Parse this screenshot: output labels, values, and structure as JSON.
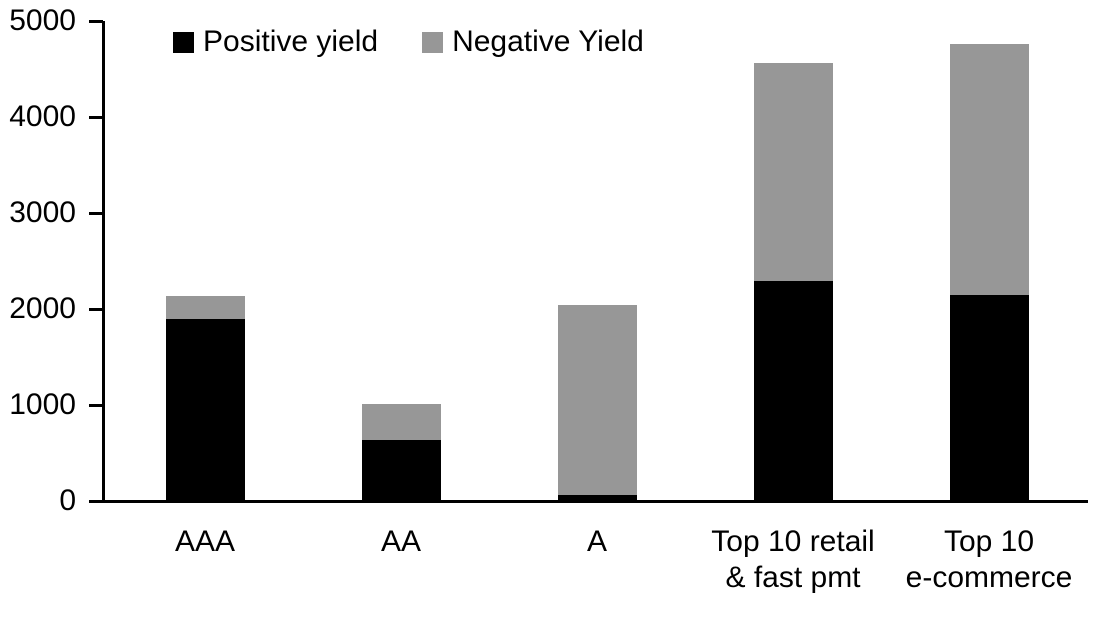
{
  "chart_data": {
    "type": "bar",
    "stacked": true,
    "title": "",
    "xlabel": "",
    "ylabel": "",
    "ylim": [
      0,
      5000
    ],
    "ytick_step": 1000,
    "ytick_labels": [
      "0",
      "1000",
      "2000",
      "3000",
      "4000",
      "5000"
    ],
    "grid": false,
    "legend_position": "top-inside",
    "categories": [
      "AAA",
      "AA",
      "A",
      "Top 10 retail & fast pmt",
      "Top 10 e-commerce"
    ],
    "category_label_lines": [
      [
        "AAA"
      ],
      [
        "AA"
      ],
      [
        "A"
      ],
      [
        "Top 10 retail",
        "& fast pmt"
      ],
      [
        "Top 10",
        "e-commerce"
      ]
    ],
    "series": [
      {
        "name": "Positive yield",
        "color": "#000000",
        "values": [
          1890,
          620,
          50,
          2280,
          2140
        ]
      },
      {
        "name": "Negative Yield",
        "color": "#979797",
        "values": [
          230,
          380,
          1980,
          2270,
          2610
        ]
      }
    ],
    "totals": [
      2120,
      1000,
      2030,
      4550,
      4750
    ]
  },
  "legend": {
    "items": [
      {
        "label": "Positive yield",
        "color": "#000000"
      },
      {
        "label": "Negative Yield",
        "color": "#979797"
      }
    ]
  },
  "colors": {
    "positive": "#000000",
    "negative": "#979797",
    "axis": "#000000",
    "background": "#ffffff"
  }
}
